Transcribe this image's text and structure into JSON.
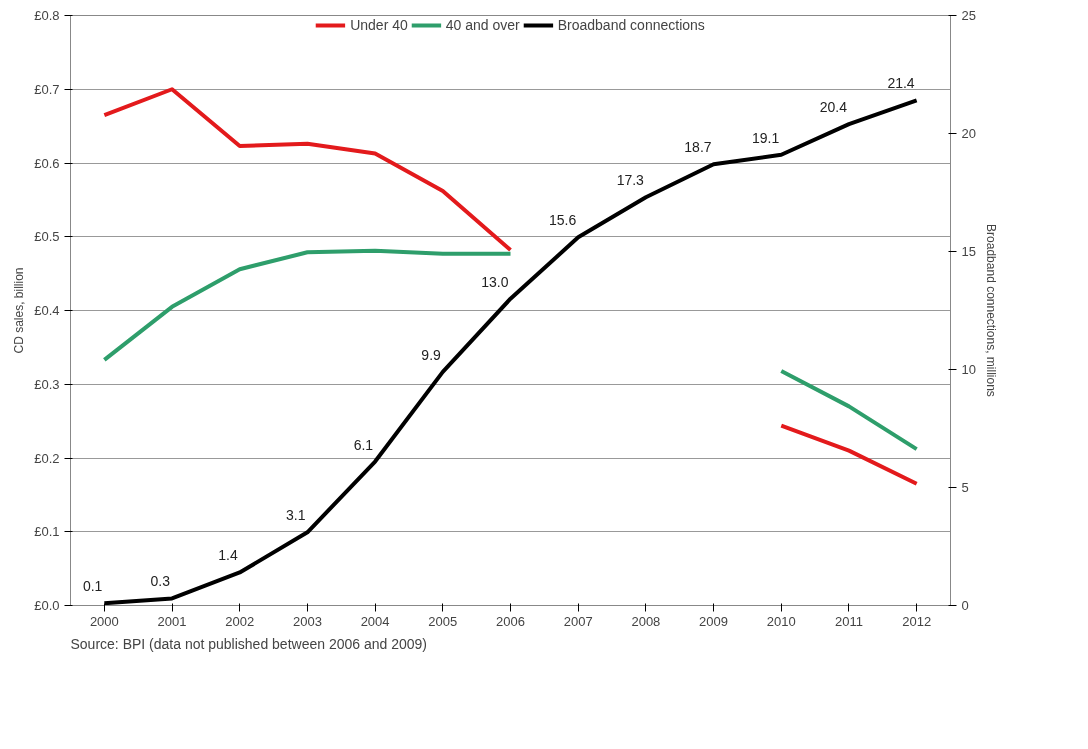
{
  "chart_data": {
    "type": "line",
    "categories": [
      "2000",
      "2001",
      "2002",
      "2003",
      "2004",
      "2005",
      "2006",
      "2007",
      "2008",
      "2009",
      "2010",
      "2011",
      "2012"
    ],
    "ylabel": "CD sales, billion",
    "y2label": "Broadband connections, millions",
    "ylim": [
      0,
      0.8
    ],
    "yticks": [
      {
        "value": 0,
        "label": "£0.0"
      },
      {
        "value": 0.1,
        "label": "£0.1"
      },
      {
        "value": 0.2,
        "label": "£0.2"
      },
      {
        "value": 0.3,
        "label": "£0.3"
      },
      {
        "value": 0.4,
        "label": "£0.4"
      },
      {
        "value": 0.5,
        "label": "£0.5"
      },
      {
        "value": 0.6,
        "label": "£0.6"
      },
      {
        "value": 0.7,
        "label": "£0.7"
      },
      {
        "value": 0.8,
        "label": "£0.8"
      }
    ],
    "y2lim": [
      0,
      25
    ],
    "y2ticks": [
      0,
      5,
      10,
      15,
      20,
      25
    ],
    "grid": "y",
    "legend": "top",
    "marker": "none",
    "line_style": "solid",
    "series": [
      {
        "name": "Under 40",
        "color": "#e31a1c",
        "values": [
          0.665,
          0.7,
          0.623,
          0.626,
          0.613,
          0.562,
          0.482,
          null,
          null,
          null,
          0.244,
          0.21,
          0.165
        ]
      },
      {
        "name": "40 and over",
        "color": "#2e9e6b",
        "values": [
          0.333,
          0.405,
          0.456,
          0.479,
          0.481,
          0.477,
          0.477,
          null,
          null,
          null,
          0.318,
          0.27,
          0.212
        ]
      },
      {
        "name": "Broadband connections",
        "color": "#000000",
        "axis": "y2",
        "value_labels": [
          "0.1",
          "0.3",
          "1.4",
          "3.1",
          "6.1",
          "9.9",
          "13.0",
          "15.6",
          "17.3",
          "18.7",
          "19.1",
          "20.4",
          "21.4"
        ],
        "values": [
          0.1,
          0.3,
          1.4,
          3.1,
          6.1,
          9.9,
          13.0,
          15.6,
          17.3,
          18.7,
          19.1,
          20.4,
          21.4
        ]
      }
    ],
    "annotations": [
      "Source: BPI (data not published between 2006 and 2009)"
    ]
  }
}
